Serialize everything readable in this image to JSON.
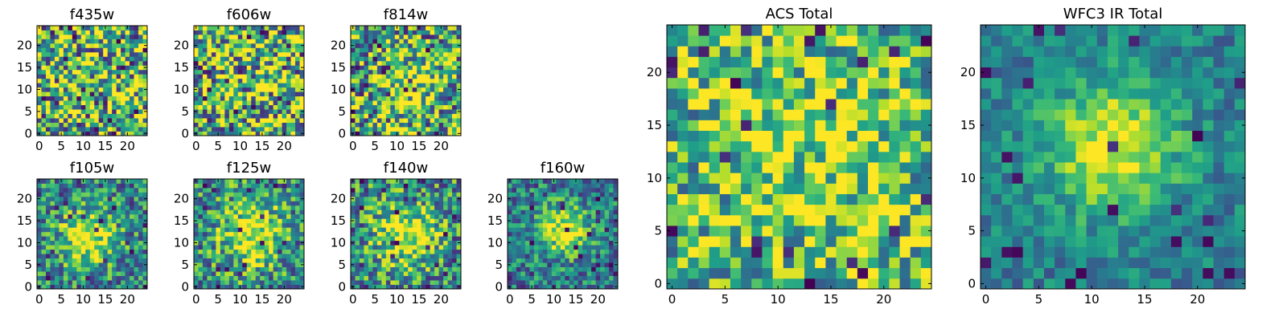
{
  "chart_data": [
    {
      "type": "heatmap",
      "id": "f435w",
      "title": "f435w",
      "colormap": "viridis",
      "grid_size": 25,
      "peak": null,
      "smoothness": 0,
      "noise": 0.55,
      "base": 0.65,
      "seed": 11,
      "xticks": [
        0,
        5,
        10,
        15,
        20
      ],
      "yticks": [
        0,
        5,
        10,
        15,
        20
      ],
      "xlim": [
        0,
        24
      ],
      "ylim": [
        0,
        24
      ]
    },
    {
      "type": "heatmap",
      "id": "f606w",
      "title": "f606w",
      "colormap": "viridis",
      "grid_size": 25,
      "peak": null,
      "smoothness": 0,
      "noise": 0.55,
      "base": 0.68,
      "seed": 23,
      "xticks": [
        0,
        5,
        10,
        15,
        20
      ],
      "yticks": [
        0,
        5,
        10,
        15,
        20
      ],
      "xlim": [
        0,
        24
      ],
      "ylim": [
        0,
        24
      ]
    },
    {
      "type": "heatmap",
      "id": "f814w",
      "title": "f814w",
      "colormap": "viridis",
      "grid_size": 25,
      "peak": [
        12,
        11
      ],
      "peak_width": 4,
      "peak_amp": 0.3,
      "noise": 0.5,
      "base": 0.6,
      "seed": 37,
      "xticks": [
        0,
        5,
        10,
        15,
        20
      ],
      "yticks": [
        0,
        5,
        10,
        15,
        20
      ],
      "xlim": [
        0,
        24
      ],
      "ylim": [
        0,
        24
      ]
    },
    {
      "type": "heatmap",
      "id": "f105w",
      "title": "f105w",
      "colormap": "viridis",
      "grid_size": 25,
      "peak": [
        11,
        11
      ],
      "peak_width": 4.5,
      "peak_amp": 0.55,
      "noise": 0.35,
      "base": 0.45,
      "seed": 41,
      "xticks": [
        0,
        5,
        10,
        15,
        20
      ],
      "yticks": [
        0,
        5,
        10,
        15,
        20
      ],
      "xlim": [
        0,
        24
      ],
      "ylim": [
        0,
        24
      ]
    },
    {
      "type": "heatmap",
      "id": "f125w",
      "title": "f125w",
      "colormap": "viridis",
      "grid_size": 25,
      "peak": [
        13,
        12
      ],
      "peak_width": 5,
      "peak_amp": 0.5,
      "noise": 0.38,
      "base": 0.5,
      "seed": 53,
      "xticks": [
        0,
        5,
        10,
        15,
        20
      ],
      "yticks": [
        0,
        5,
        10,
        15,
        20
      ],
      "xlim": [
        0,
        24
      ],
      "ylim": [
        0,
        24
      ]
    },
    {
      "type": "heatmap",
      "id": "f140w",
      "title": "f140w",
      "colormap": "viridis",
      "grid_size": 25,
      "peak": [
        12,
        12
      ],
      "peak_width": 5,
      "peak_amp": 0.5,
      "noise": 0.38,
      "base": 0.5,
      "seed": 67,
      "xticks": [
        0,
        5,
        10,
        15,
        20
      ],
      "yticks": [
        0,
        5,
        10,
        15,
        20
      ],
      "xlim": [
        0,
        24
      ],
      "ylim": [
        0,
        24
      ]
    },
    {
      "type": "heatmap",
      "id": "f160w",
      "title": "f160w",
      "colormap": "viridis",
      "grid_size": 25,
      "peak": [
        12,
        13
      ],
      "peak_width": 4,
      "peak_amp": 0.55,
      "noise": 0.3,
      "base": 0.42,
      "seed": 79,
      "xticks": [
        0,
        5,
        10,
        15,
        20
      ],
      "yticks": [
        0,
        5,
        10,
        15,
        20
      ],
      "xlim": [
        0,
        24
      ],
      "ylim": [
        0,
        24
      ]
    },
    {
      "type": "heatmap",
      "id": "acs-total",
      "title": "ACS Total",
      "colormap": "viridis",
      "grid_size": 25,
      "peak": [
        14,
        13
      ],
      "peak_width": 6,
      "peak_amp": 0.2,
      "noise": 0.4,
      "base": 0.66,
      "seed": 97,
      "xticks": [
        0,
        5,
        10,
        15,
        20
      ],
      "yticks": [
        0,
        5,
        10,
        15,
        20
      ],
      "xlim": [
        0,
        24
      ],
      "ylim": [
        0,
        24
      ]
    },
    {
      "type": "heatmap",
      "id": "wfc3-ir-total",
      "title": "WFC3 IR Total",
      "colormap": "viridis",
      "grid_size": 25,
      "peak": [
        12,
        13
      ],
      "peak_width": 4.5,
      "peak_amp": 0.55,
      "noise": 0.18,
      "base": 0.42,
      "seed": 113,
      "xticks": [
        0,
        5,
        10,
        15,
        20
      ],
      "yticks": [
        0,
        5,
        10,
        15,
        20
      ],
      "xlim": [
        0,
        24
      ],
      "ylim": [
        0,
        24
      ]
    }
  ]
}
